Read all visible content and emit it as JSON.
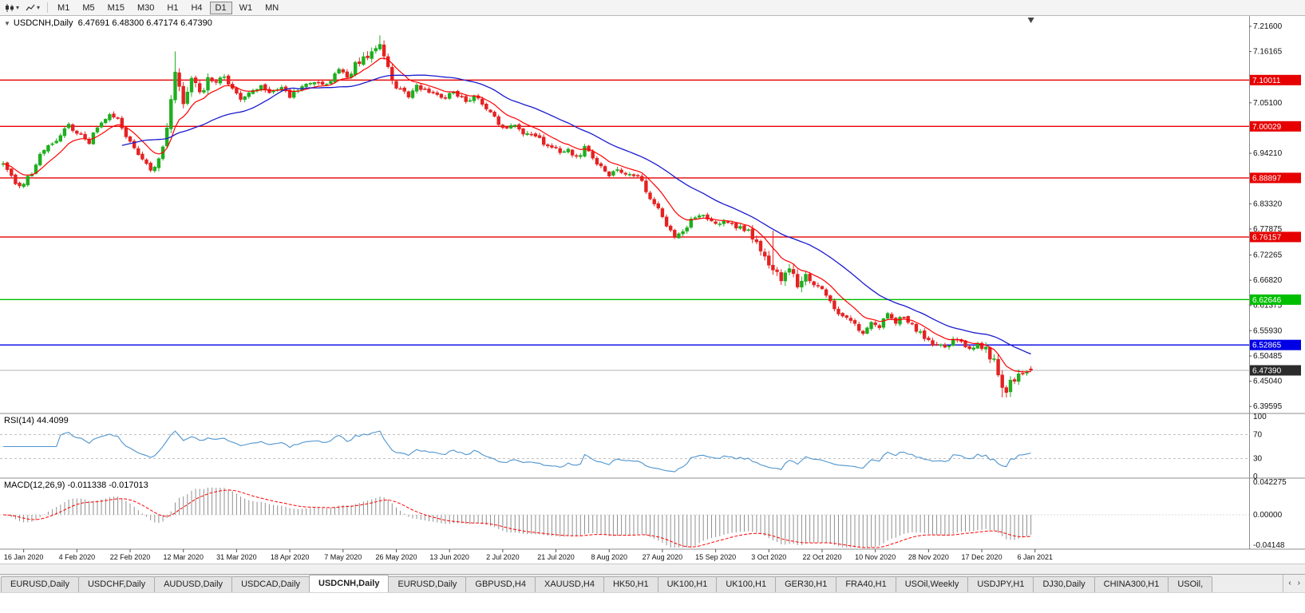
{
  "icons": {
    "dropdown_arrow": "▾",
    "header_collapse": "▼",
    "tab_scroll_left": "‹",
    "tab_scroll_right": "›"
  },
  "toolbar": {
    "timeframes": [
      "M1",
      "M5",
      "M15",
      "M30",
      "H1",
      "H4",
      "D1",
      "W1",
      "MN"
    ],
    "selected": "D1"
  },
  "header": {
    "symbol": "USDCNH,Daily",
    "ohlc": "6.47691 6.48300 6.47174 6.47390"
  },
  "rsi_panel": {
    "label": "RSI(14) 44.4099",
    "scale": [
      "100",
      "70",
      "30",
      "0"
    ]
  },
  "macd_panel": {
    "label": "MACD(12,26,9) -0.011338 -0.017013",
    "scale": [
      "0.042275",
      "0.00000",
      "-0.04148"
    ]
  },
  "tabs": {
    "items": [
      "EURUSD,Daily",
      "USDCHF,Daily",
      "AUDUSD,Daily",
      "USDCAD,Daily",
      "USDCNH,Daily",
      "EURUSD,Daily",
      "GBPUSD,H4",
      "XAUUSD,H4",
      "HK50,H1",
      "UK100,H1",
      "UK100,H1",
      "GER30,H1",
      "FRA40,H1",
      "USOil,Weekly",
      "USDJPY,H1",
      "DJ30,Daily",
      "CHINA300,H1",
      "USOil,"
    ],
    "active_index": 4
  },
  "chart_data": {
    "type": "candlestick",
    "title": "USDCNH,Daily",
    "ohlc_last": {
      "open": 6.47691,
      "high": 6.483,
      "low": 6.47174,
      "close": 6.4739
    },
    "bid_price": 6.4739,
    "num_bars": 252,
    "bars_per_label": 13,
    "x_labels": [
      "16 Jan 2020",
      "4 Feb 2020",
      "22 Feb 2020",
      "12 Mar 2020",
      "31 Mar 2020",
      "18 Apr 2020",
      "7 May 2020",
      "26 May 2020",
      "13 Jun 2020",
      "2 Jul 2020",
      "21 Jul 2020",
      "8 Aug 2020",
      "27 Aug 2020",
      "15 Sep 2020",
      "3 Oct 2020",
      "22 Oct 2020",
      "10 Nov 2020",
      "28 Nov 2020",
      "17 Dec 2020",
      "6 Jan 2021"
    ],
    "y_ticks": [
      7.216,
      7.16165,
      7.051,
      6.9421,
      6.8332,
      6.77875,
      6.72265,
      6.6682,
      6.61375,
      6.5593,
      6.50485,
      6.4504,
      6.39595
    ],
    "y_range_approx": [
      6.3826,
      7.2384
    ],
    "hlines": [
      {
        "price": 7.10011,
        "color": "#e60000",
        "kind": "resistance"
      },
      {
        "price": 7.00029,
        "color": "#e60000",
        "kind": "resistance"
      },
      {
        "price": 6.88897,
        "color": "#e60000",
        "kind": "resistance"
      },
      {
        "price": 6.76157,
        "color": "#e60000",
        "kind": "resistance"
      },
      {
        "price": 6.62646,
        "color": "#00bf00",
        "kind": "support"
      },
      {
        "price": 6.52865,
        "color": "#0000e6",
        "kind": "support"
      }
    ],
    "up_color": "#1fae1f",
    "down_color": "#e42222",
    "ma_fast": {
      "period": 10,
      "color": "#ff0000"
    },
    "ma_slow": {
      "period": 30,
      "color": "#1a1ace"
    },
    "rsi": {
      "period": 14,
      "value": 44.4099,
      "levels": [
        70,
        30
      ],
      "range": [
        0,
        100
      ],
      "color": "#4f94cd"
    },
    "macd": {
      "fast": 12,
      "slow": 26,
      "signal": 9,
      "main": -0.011338,
      "signal_value": -0.017013,
      "scale_max": 0.042275,
      "scale_min": -0.04148,
      "hist_color": "#909090",
      "signal_color": "#ff0000"
    },
    "seed": 20210114,
    "volatile_ranges": [
      [
        38,
        50
      ],
      [
        86,
        95
      ],
      [
        183,
        196
      ],
      [
        240,
        248
      ]
    ],
    "wick_extremes": [
      {
        "bar": 42,
        "high": 7.162
      },
      {
        "bar": 92,
        "high": 7.1965
      },
      {
        "bar": 188,
        "high": 6.775
      },
      {
        "bar": 244,
        "low": 6.4155
      }
    ],
    "price_path_anchors": [
      [
        0,
        6.916
      ],
      [
        2,
        6.893
      ],
      [
        4,
        6.869
      ],
      [
        7,
        6.902
      ],
      [
        10,
        6.952
      ],
      [
        13,
        6.974
      ],
      [
        16,
        7.0
      ],
      [
        18,
        6.986
      ],
      [
        21,
        6.967
      ],
      [
        24,
        7.012
      ],
      [
        26,
        7.03
      ],
      [
        28,
        7.018
      ],
      [
        30,
        6.979
      ],
      [
        33,
        6.936
      ],
      [
        36,
        6.904
      ],
      [
        38,
        6.931
      ],
      [
        40,
        6.995
      ],
      [
        41,
        7.058
      ],
      [
        42,
        7.108
      ],
      [
        44,
        7.046
      ],
      [
        46,
        7.112
      ],
      [
        48,
        7.074
      ],
      [
        50,
        7.096
      ],
      [
        52,
        7.092
      ],
      [
        54,
        7.108
      ],
      [
        56,
        7.082
      ],
      [
        58,
        7.058
      ],
      [
        61,
        7.075
      ],
      [
        63,
        7.09
      ],
      [
        65,
        7.076
      ],
      [
        68,
        7.083
      ],
      [
        70,
        7.066
      ],
      [
        73,
        7.086
      ],
      [
        76,
        7.1
      ],
      [
        78,
        7.091
      ],
      [
        80,
        7.101
      ],
      [
        82,
        7.118
      ],
      [
        84,
        7.108
      ],
      [
        86,
        7.128
      ],
      [
        88,
        7.146
      ],
      [
        90,
        7.163
      ],
      [
        92,
        7.173
      ],
      [
        93,
        7.148
      ],
      [
        95,
        7.092
      ],
      [
        97,
        7.078
      ],
      [
        99,
        7.068
      ],
      [
        101,
        7.088
      ],
      [
        104,
        7.074
      ],
      [
        107,
        7.062
      ],
      [
        110,
        7.074
      ],
      [
        113,
        7.056
      ],
      [
        115,
        7.066
      ],
      [
        117,
        7.048
      ],
      [
        119,
        7.028
      ],
      [
        121,
        7.008
      ],
      [
        123,
        6.992
      ],
      [
        125,
        7.002
      ],
      [
        127,
        6.988
      ],
      [
        130,
        6.976
      ],
      [
        132,
        6.966
      ],
      [
        134,
        6.958
      ],
      [
        136,
        6.944
      ],
      [
        138,
        6.95
      ],
      [
        140,
        6.934
      ],
      [
        142,
        6.952
      ],
      [
        144,
        6.934
      ],
      [
        146,
        6.912
      ],
      [
        148,
        6.898
      ],
      [
        150,
        6.906
      ],
      [
        152,
        6.892
      ],
      [
        154,
        6.898
      ],
      [
        156,
        6.885
      ],
      [
        158,
        6.842
      ],
      [
        160,
        6.82
      ],
      [
        162,
        6.788
      ],
      [
        164,
        6.762
      ],
      [
        166,
        6.778
      ],
      [
        168,
        6.796
      ],
      [
        170,
        6.812
      ],
      [
        172,
        6.798
      ],
      [
        174,
        6.786
      ],
      [
        176,
        6.8
      ],
      [
        178,
        6.792
      ],
      [
        180,
        6.78
      ],
      [
        182,
        6.772
      ],
      [
        184,
        6.744
      ],
      [
        186,
        6.716
      ],
      [
        188,
        6.698
      ],
      [
        190,
        6.672
      ],
      [
        192,
        6.69
      ],
      [
        194,
        6.664
      ],
      [
        196,
        6.682
      ],
      [
        198,
        6.66
      ],
      [
        200,
        6.645
      ],
      [
        202,
        6.62
      ],
      [
        204,
        6.598
      ],
      [
        206,
        6.585
      ],
      [
        208,
        6.57
      ],
      [
        210,
        6.552
      ],
      [
        212,
        6.58
      ],
      [
        214,
        6.568
      ],
      [
        216,
        6.592
      ],
      [
        218,
        6.578
      ],
      [
        220,
        6.588
      ],
      [
        222,
        6.57
      ],
      [
        224,
        6.554
      ],
      [
        226,
        6.54
      ],
      [
        228,
        6.527
      ],
      [
        230,
        6.521
      ],
      [
        232,
        6.543
      ],
      [
        234,
        6.536
      ],
      [
        236,
        6.523
      ],
      [
        238,
        6.529
      ],
      [
        240,
        6.517
      ],
      [
        242,
        6.49
      ],
      [
        244,
        6.447
      ],
      [
        245,
        6.432
      ],
      [
        247,
        6.458
      ],
      [
        249,
        6.469
      ],
      [
        251,
        6.4739
      ]
    ]
  }
}
